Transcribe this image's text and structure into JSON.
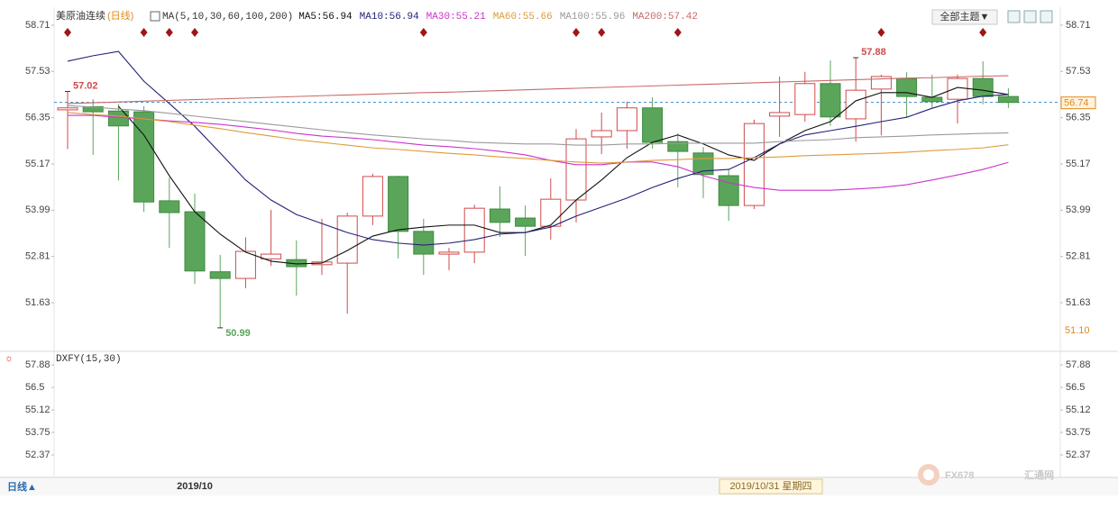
{
  "chart_data": [
    {
      "type": "candlestick",
      "title": "美原油连续",
      "subtitle": "(日线)",
      "indicator": "MA(5,10,30,60,100,200)",
      "categories": [
        null,
        null,
        null,
        null,
        null,
        "2019/10",
        null,
        null,
        null,
        null,
        null,
        null,
        null,
        null,
        null,
        null,
        null,
        null,
        null,
        null,
        null,
        null,
        null,
        null,
        null,
        null,
        null,
        null,
        null,
        null,
        null,
        null,
        null,
        null,
        null,
        null,
        null,
        null
      ],
      "up_color": "#d04a4a",
      "down_color": "#5aa55a",
      "signal_color": "#a01515",
      "candles": [
        {
          "open": 56.55,
          "high": 57.02,
          "low": 55.55,
          "close": 56.6,
          "signal": true,
          "marked": "high"
        },
        {
          "open": 56.63,
          "high": 56.82,
          "low": 55.4,
          "close": 56.5
        },
        {
          "open": 56.52,
          "high": 56.7,
          "low": 54.75,
          "close": 56.14
        },
        {
          "open": 56.5,
          "high": 56.64,
          "low": 53.95,
          "close": 54.2,
          "signal": true
        },
        {
          "open": 54.23,
          "high": 54.82,
          "low": 53.03,
          "close": 53.93,
          "signal": true
        },
        {
          "open": 53.95,
          "high": 54.41,
          "low": 52.11,
          "close": 52.44,
          "signal": true
        },
        {
          "open": 52.42,
          "high": 52.85,
          "low": 50.99,
          "close": 52.25,
          "marked": "low"
        },
        {
          "open": 52.25,
          "high": 53.3,
          "low": 52.0,
          "close": 52.94
        },
        {
          "open": 52.75,
          "high": 54.0,
          "low": 52.57,
          "close": 52.87
        },
        {
          "open": 52.73,
          "high": 53.22,
          "low": 51.81,
          "close": 52.55
        },
        {
          "open": 52.6,
          "high": 53.77,
          "low": 52.34,
          "close": 52.67
        },
        {
          "open": 52.64,
          "high": 53.93,
          "low": 51.35,
          "close": 53.84
        },
        {
          "open": 53.84,
          "high": 54.92,
          "low": 53.61,
          "close": 54.85
        },
        {
          "open": 54.85,
          "high": 54.87,
          "low": 52.76,
          "close": 53.45
        },
        {
          "open": 53.45,
          "high": 53.77,
          "low": 52.34,
          "close": 52.87,
          "signal": true
        },
        {
          "open": 52.87,
          "high": 53.03,
          "low": 52.46,
          "close": 52.92
        },
        {
          "open": 52.92,
          "high": 54.13,
          "low": 52.64,
          "close": 54.04
        },
        {
          "open": 54.02,
          "high": 54.6,
          "low": 53.31,
          "close": 53.68
        },
        {
          "open": 53.79,
          "high": 54.11,
          "low": 52.82,
          "close": 53.58
        },
        {
          "open": 53.58,
          "high": 54.8,
          "low": 53.24,
          "close": 54.27
        },
        {
          "open": 54.25,
          "high": 56.06,
          "low": 53.68,
          "close": 55.81,
          "signal": true
        },
        {
          "open": 55.86,
          "high": 56.48,
          "low": 55.42,
          "close": 56.02,
          "signal": true
        },
        {
          "open": 56.02,
          "high": 56.76,
          "low": 55.56,
          "close": 56.6
        },
        {
          "open": 56.6,
          "high": 56.87,
          "low": 55.56,
          "close": 55.72
        },
        {
          "open": 55.74,
          "high": 55.95,
          "low": 54.57,
          "close": 55.49,
          "signal": true
        },
        {
          "open": 55.45,
          "high": 55.6,
          "low": 54.3,
          "close": 54.9
        },
        {
          "open": 54.87,
          "high": 55.03,
          "low": 53.72,
          "close": 54.11
        },
        {
          "open": 54.11,
          "high": 56.3,
          "low": 54.02,
          "close": 56.2
        },
        {
          "open": 56.39,
          "high": 57.4,
          "low": 55.86,
          "close": 56.48
        },
        {
          "open": 56.43,
          "high": 57.52,
          "low": 56.25,
          "close": 57.22
        },
        {
          "open": 57.22,
          "high": 57.81,
          "low": 56.14,
          "close": 56.37
        },
        {
          "open": 56.32,
          "high": 57.88,
          "low": 55.74,
          "close": 57.05,
          "marked": "high"
        },
        {
          "open": 57.08,
          "high": 57.45,
          "low": 55.9,
          "close": 57.4,
          "signal": true
        },
        {
          "open": 57.35,
          "high": 57.51,
          "low": 56.36,
          "close": 56.89
        },
        {
          "open": 56.87,
          "high": 57.45,
          "low": 56.6,
          "close": 56.76
        },
        {
          "open": 56.82,
          "high": 57.45,
          "low": 56.2,
          "close": 57.35
        },
        {
          "open": 57.35,
          "high": 57.79,
          "low": 56.69,
          "close": 56.89,
          "signal": true
        },
        {
          "open": 56.89,
          "high": 57.1,
          "low": 56.6,
          "close": 56.74
        }
      ],
      "series": [
        {
          "name": "MA5:56.94",
          "color": "#111111",
          "values": [
            null,
            null,
            56.64,
            55.91,
            54.87,
            53.95,
            53.38,
            52.92,
            52.69,
            52.62,
            52.64,
            52.96,
            53.33,
            53.49,
            53.56,
            53.61,
            53.61,
            53.42,
            53.42,
            53.61,
            54.25,
            54.76,
            55.33,
            55.72,
            55.91,
            55.68,
            55.4,
            55.26,
            55.68,
            56.02,
            56.25,
            56.78,
            56.99,
            56.99,
            56.87,
            57.12,
            57.05,
            56.94
          ]
        },
        {
          "name": "MA10:56.94",
          "color": "#22227a",
          "values": [
            57.79,
            57.93,
            58.04,
            57.28,
            56.71,
            56.13,
            55.45,
            54.76,
            54.25,
            53.88,
            53.65,
            53.42,
            53.24,
            53.15,
            53.1,
            53.15,
            53.24,
            53.38,
            53.42,
            53.56,
            53.84,
            54.07,
            54.3,
            54.57,
            54.8,
            54.99,
            55.03,
            55.33,
            55.68,
            55.91,
            56.02,
            56.13,
            56.25,
            56.36,
            56.59,
            56.78,
            56.9,
            56.94
          ]
        },
        {
          "name": "MA30:55.21",
          "color": "#cc33cc",
          "values": [
            56.41,
            56.41,
            56.36,
            56.32,
            56.27,
            56.23,
            56.18,
            56.11,
            56.04,
            55.95,
            55.88,
            55.84,
            55.79,
            55.72,
            55.65,
            55.61,
            55.56,
            55.49,
            55.4,
            55.26,
            55.15,
            55.15,
            55.22,
            55.22,
            55.1,
            54.87,
            54.69,
            54.57,
            54.5,
            54.5,
            54.5,
            54.53,
            54.57,
            54.64,
            54.76,
            54.89,
            55.03,
            55.21
          ]
        },
        {
          "name": "MA60:55.66",
          "color": "#e09a3a",
          "values": [
            56.48,
            56.43,
            56.39,
            56.32,
            56.25,
            56.16,
            56.07,
            55.97,
            55.88,
            55.79,
            55.72,
            55.65,
            55.58,
            55.54,
            55.49,
            55.44,
            55.4,
            55.35,
            55.31,
            55.26,
            55.22,
            55.19,
            55.22,
            55.26,
            55.28,
            55.31,
            55.31,
            55.33,
            55.35,
            55.38,
            55.4,
            55.42,
            55.44,
            55.47,
            55.51,
            55.54,
            55.58,
            55.66
          ]
        },
        {
          "name": "MA100:55.96",
          "color": "#9a9a9a",
          "values": [
            56.66,
            56.62,
            56.57,
            56.53,
            56.46,
            56.39,
            56.32,
            56.25,
            56.18,
            56.11,
            56.04,
            55.97,
            55.91,
            55.86,
            55.81,
            55.77,
            55.72,
            55.7,
            55.68,
            55.68,
            55.65,
            55.65,
            55.68,
            55.68,
            55.7,
            55.7,
            55.7,
            55.7,
            55.74,
            55.77,
            55.79,
            55.84,
            55.86,
            55.88,
            55.91,
            55.93,
            55.95,
            55.96
          ]
        },
        {
          "name": "MA200:57.42",
          "color": "#c86a6a",
          "values": [
            56.71,
            56.73,
            56.75,
            56.77,
            56.79,
            56.81,
            56.83,
            56.85,
            56.87,
            56.89,
            56.91,
            56.93,
            56.95,
            56.97,
            56.99,
            57.0,
            57.02,
            57.04,
            57.06,
            57.08,
            57.1,
            57.12,
            57.14,
            57.16,
            57.18,
            57.2,
            57.22,
            57.24,
            57.26,
            57.28,
            57.3,
            57.32,
            57.34,
            57.36,
            57.37,
            57.39,
            57.41,
            57.42
          ]
        }
      ],
      "current_price": 56.74,
      "ylim": [
        50.39,
        59.03
      ],
      "yticks": [
        58.71,
        57.53,
        56.35,
        55.17,
        53.99,
        52.81,
        51.63
      ]
    },
    {
      "type": "indicator",
      "title": "DXFY(15,30)",
      "ylim": [
        50.99,
        58.71
      ],
      "yticks": [
        57.88,
        56.5,
        55.12,
        53.75,
        52.37
      ]
    }
  ],
  "ui": {
    "theme_button": "全部主题▼",
    "period": "日线▲",
    "cursor_date": "2019/10/31 星期四",
    "bottom_label": "51.10",
    "logo": "FX678",
    "logo_cn": "汇通网"
  }
}
